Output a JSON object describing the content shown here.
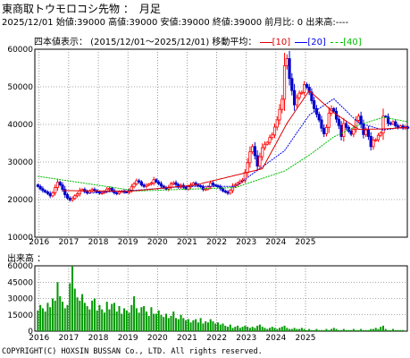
{
  "header": {
    "title": "東商取トウモロコシ先物 ：　月足",
    "info": "2025/12/01 始値:39000 高値:39000 安値:39000 終値:39000 前月比: 0 出来高:----"
  },
  "legend": {
    "range_text": "四本値表示： (2015/12/01～2025/12/01) 移動平均：",
    "ma10": "[10]",
    "ma20": "[20]",
    "ma40": "[40]"
  },
  "volume_label": "出来高 ：",
  "copyright": "COPYRIGHT(C) HOXSIN BUSSAN Co., LTD. All rights reserved.",
  "colors": {
    "up": "#ff0000",
    "down": "#0000cc",
    "ma10": "#dd0000",
    "ma20": "#0000ee",
    "ma40": "#00bb00",
    "volume": "#009900",
    "grid": "#555555"
  },
  "chart_data": [
    {
      "type": "candlestick",
      "start": "2015-12",
      "x_tick_labels": [
        "2016",
        "2017",
        "2018",
        "2019",
        "2020",
        "2021",
        "2022",
        "2023",
        "2024",
        "2025"
      ],
      "ylim": [
        10000,
        60000
      ],
      "y_tick_labels": [
        "60000",
        "50000",
        "40000",
        "30000",
        "20000",
        "10000"
      ],
      "grid": true,
      "closes": [
        23500,
        22900,
        22400,
        22000,
        21600,
        21000,
        21800,
        23200,
        24600,
        23900,
        22700,
        21300,
        20400,
        19900,
        20300,
        21000,
        21500,
        22400,
        22700,
        22100,
        21800,
        22300,
        22700,
        22400,
        22000,
        21700,
        21800,
        22200,
        22800,
        23000,
        22400,
        21800,
        21600,
        22100,
        22200,
        22000,
        21900,
        22500,
        23400,
        24200,
        25000,
        24700,
        23900,
        23500,
        23800,
        24100,
        24400,
        25300,
        24700,
        24200,
        23600,
        23200,
        22800,
        23300,
        24200,
        24500,
        24000,
        23300,
        23800,
        23300,
        22800,
        23400,
        23900,
        24400,
        23900,
        23700,
        23400,
        22700,
        22800,
        23400,
        24400,
        23900,
        23700,
        23400,
        22900,
        22300,
        22000,
        21700,
        22400,
        23600,
        23900,
        24400,
        24900,
        25200,
        27200,
        29800,
        32700,
        34100,
        31700,
        28900,
        31400,
        33800,
        34700,
        35200,
        36500,
        37200,
        39300,
        41200,
        44000,
        46700,
        55600,
        57500,
        52200,
        49000,
        45200,
        47100,
        48300,
        48500,
        50600,
        49900,
        48600,
        46300,
        44200,
        42700,
        41200,
        39000,
        37500,
        39200,
        43000,
        44200,
        43500,
        41400,
        39700,
        36800,
        40200,
        39200,
        38200,
        37400,
        38700,
        41100,
        42200,
        40100,
        37300,
        38500,
        36800,
        34100,
        35800,
        35900,
        37100,
        37700,
        42200,
        42000,
        40300,
        40100,
        40700,
        39600,
        39200,
        39600,
        39000,
        39300,
        39000
      ],
      "ma10_sample": {
        "months": [
          10,
          37,
          64,
          91,
          101,
          110,
          120,
          130,
          140,
          150
        ],
        "values": [
          22400,
          22200,
          23900,
          28200,
          40300,
          49000,
          43100,
          38700,
          38800,
          39200
        ]
      },
      "ma20_sample": {
        "months": [
          20,
          40,
          60,
          80,
          100,
          110,
          120,
          130,
          140,
          150
        ],
        "values": [
          21700,
          22500,
          23500,
          23500,
          33000,
          42500,
          46800,
          40400,
          38500,
          39400
        ]
      },
      "ma40_sample": {
        "months": [
          0,
          40,
          80,
          100,
          110,
          120,
          130,
          140,
          150
        ],
        "values": [
          26200,
          22300,
          23200,
          27600,
          31800,
          36700,
          39800,
          41900,
          40700
        ]
      }
    },
    {
      "type": "bar",
      "title": "出来高",
      "ylim": [
        0,
        60000
      ],
      "y_tick_labels": [
        "60000",
        "45000",
        "30000",
        "15000",
        "0"
      ],
      "x_tick_labels": [
        "2016",
        "2017",
        "2018",
        "2019",
        "2020",
        "2021",
        "2022",
        "2023",
        "2024",
        "2025"
      ],
      "values": [
        19000,
        24000,
        21000,
        18000,
        26000,
        22000,
        30000,
        28000,
        45000,
        32000,
        27000,
        21000,
        24000,
        44000,
        60000,
        39000,
        31000,
        28000,
        34000,
        26000,
        23000,
        20000,
        28000,
        30000,
        19000,
        24000,
        20000,
        17000,
        27000,
        20000,
        25000,
        26000,
        18000,
        23000,
        16000,
        21000,
        19000,
        17000,
        24000,
        32000,
        21000,
        17000,
        22000,
        23000,
        18000,
        14000,
        22000,
        16000,
        16000,
        19000,
        15000,
        13000,
        16000,
        12000,
        14000,
        18000,
        12000,
        11000,
        15000,
        12000,
        10000,
        11000,
        8000,
        10000,
        11000,
        8000,
        12000,
        7000,
        9000,
        8000,
        11000,
        9000,
        7000,
        8000,
        6000,
        7000,
        5000,
        4000,
        6000,
        3000,
        4000,
        5000,
        3000,
        4000,
        5000,
        4000,
        3000,
        4000,
        3000,
        5000,
        6000,
        4000,
        3000,
        2000,
        3000,
        4000,
        3000,
        2000,
        3000,
        4000,
        5000,
        3000,
        2000,
        2000,
        3000,
        2000,
        2000,
        3000,
        2000,
        1000,
        2000,
        1000,
        1000,
        2000,
        1000,
        1000,
        1000,
        2000,
        1000,
        2000,
        3000,
        2000,
        1000,
        1000,
        2000,
        1000,
        1000,
        1000,
        2000,
        1000,
        1000,
        2000,
        1000,
        1000,
        1000,
        2000,
        2000,
        3000,
        2000,
        4000,
        5000,
        2000,
        1000,
        1000,
        2000,
        1000,
        1000,
        1000,
        1000,
        0,
        0
      ]
    }
  ]
}
